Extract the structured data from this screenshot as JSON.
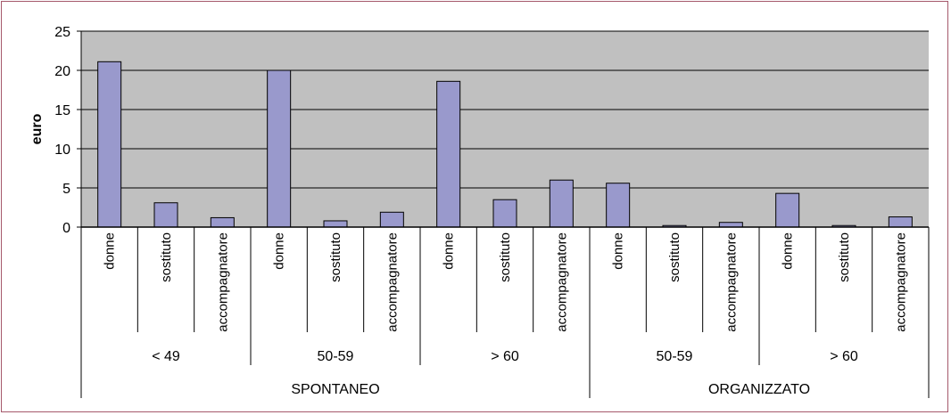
{
  "chart_data": {
    "type": "bar",
    "ylabel": "euro",
    "xlabel": "",
    "ylim": [
      0,
      25
    ],
    "yticks": [
      0,
      5,
      10,
      15,
      20,
      25
    ],
    "grid": true,
    "colors": {
      "plot_bg": "#c0c0c0",
      "bar": "#9999cc",
      "bar_edge": "#000000",
      "frame": "#a5596b"
    },
    "categories": [
      "donne",
      "sostituto",
      "accompagnatore",
      "donne",
      "sostituto",
      "accompagnatore",
      "donne",
      "sostituto",
      "accompagnatore",
      "donne",
      "sostituto",
      "accompagnatore",
      "donne",
      "sostituto",
      "accompagnatore"
    ],
    "values": [
      21.1,
      3.1,
      1.2,
      20.0,
      0.8,
      1.9,
      18.6,
      3.5,
      6.0,
      5.6,
      0.2,
      0.6,
      4.3,
      0.2,
      1.3
    ],
    "age_groups": [
      "< 49",
      "50-59",
      "> 60",
      "50-59",
      "> 60"
    ],
    "modes": [
      "SPONTANEO",
      "ORGANIZZATO"
    ]
  }
}
